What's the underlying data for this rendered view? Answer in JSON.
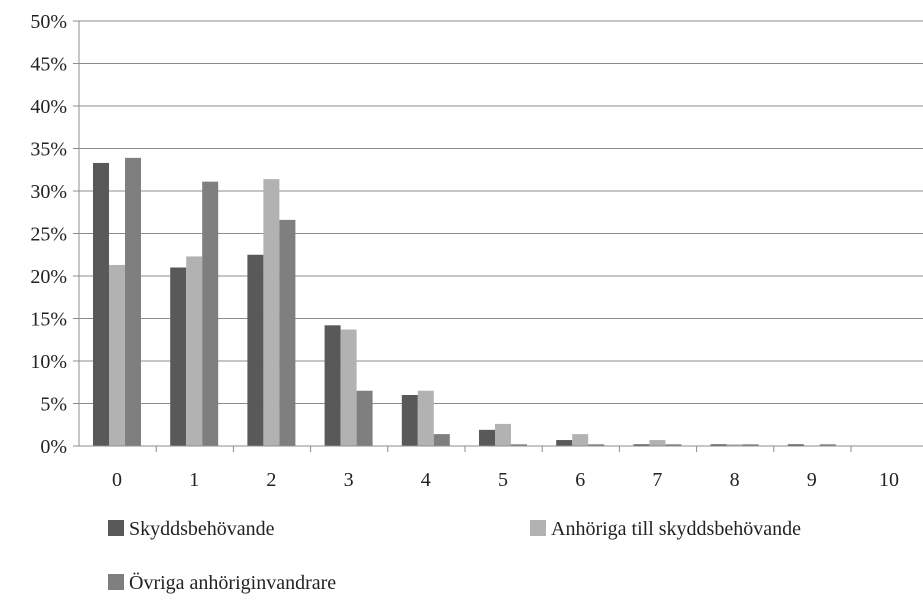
{
  "chart_data": {
    "type": "bar",
    "categories": [
      "0",
      "1",
      "2",
      "3",
      "4",
      "5",
      "6",
      "7",
      "8",
      "9",
      "10"
    ],
    "series": [
      {
        "name": "Skyddsbehövande",
        "color": "#595959",
        "values": [
          33.3,
          21.0,
          22.5,
          14.2,
          6.0,
          1.9,
          0.7,
          0.2,
          0.2,
          0.2,
          0.0
        ]
      },
      {
        "name": "Anhöriga till skyddsbehövande",
        "color": "#b2b2b2",
        "values": [
          21.3,
          22.3,
          31.4,
          13.7,
          6.5,
          2.6,
          1.4,
          0.7,
          0.2,
          0.0,
          0.0
        ]
      },
      {
        "name": "Övriga anhöriginvandrare",
        "color": "#7f7f7f",
        "values": [
          33.9,
          31.1,
          26.6,
          6.5,
          1.4,
          0.2,
          0.2,
          0.2,
          0.2,
          0.2,
          0.0
        ]
      }
    ],
    "ylim": [
      0,
      50
    ],
    "yticks": [
      "0%",
      "5%",
      "10%",
      "15%",
      "20%",
      "25%",
      "30%",
      "35%",
      "40%",
      "45%",
      "50%"
    ],
    "grid": true,
    "legend_position": "bottom",
    "title": "",
    "xlabel": "",
    "ylabel": ""
  }
}
